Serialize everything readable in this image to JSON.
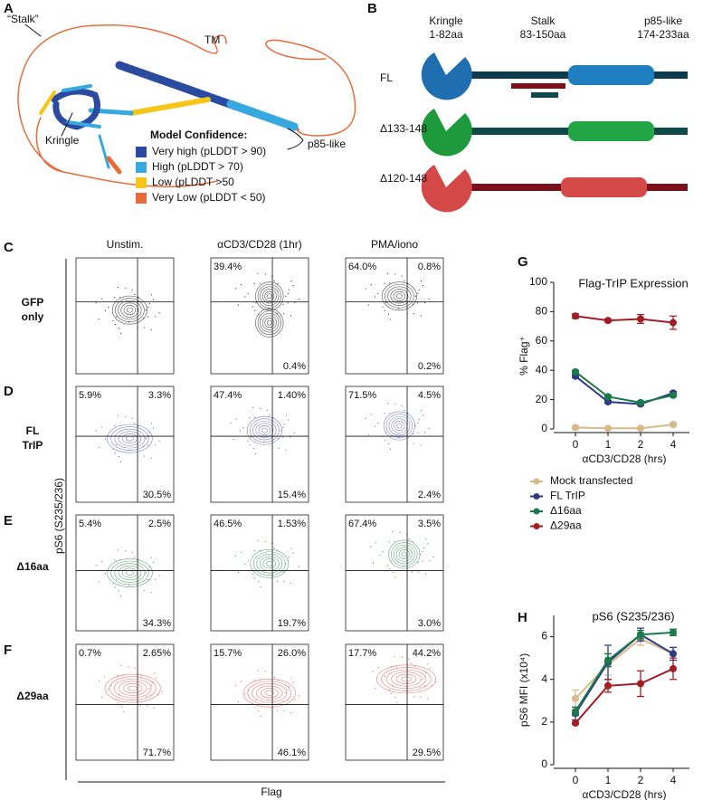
{
  "panel_labels": [
    "A",
    "B",
    "C",
    "D",
    "E",
    "F",
    "G",
    "H"
  ],
  "panel_a": {
    "labels": {
      "stalk": "“Stalk”",
      "tm": "TM",
      "kringle": "Kringle",
      "p85": "p85-like"
    },
    "legend_title": "Model Confidence:",
    "legend": [
      {
        "label": "Very high (pLDDT > 90)",
        "color": "#2a4ba0"
      },
      {
        "label": "High (pLDDT > 70)",
        "color": "#35a9e0"
      },
      {
        "label": "Low (pLDDT >50",
        "color": "#f5c518"
      },
      {
        "label": "Very Low (pLDDT < 50)",
        "color": "#e86c3a"
      }
    ]
  },
  "panel_b": {
    "domains": [
      {
        "name": "Kringle",
        "range": "1-82aa"
      },
      {
        "name": "Stalk",
        "range": "83-150aa"
      },
      {
        "name": "p85-like",
        "range": "174-233aa"
      }
    ],
    "constructs": [
      "FL",
      "Δ133-148",
      "Δ120-148"
    ]
  },
  "flow": {
    "columns": [
      "Unstim.",
      "αCD3/CD28 (1hr)",
      "PMA/iono"
    ],
    "y_label": "pS6 (S235/236)",
    "x_label": "Flag",
    "rows": [
      {
        "label": [
          "GFP",
          "only"
        ],
        "plots": [
          {},
          {
            "ul": "39.4%",
            "lr": "0.4%"
          },
          {
            "ul": "64.0%",
            "ur": "0.8%",
            "lr": "0.2%"
          }
        ]
      },
      {
        "label": [
          "FL",
          "TrIP"
        ],
        "plots": [
          {
            "ul": "5.9%",
            "ur": "3.3%",
            "lr": "30.5%"
          },
          {
            "ul": "47.4%",
            "ur": "1.40%",
            "lr": "15.4%"
          },
          {
            "ul": "71.5%",
            "ur": "4.5%",
            "lr": "2.4%"
          }
        ]
      },
      {
        "label": [
          "Δ16aa"
        ],
        "plots": [
          {
            "ul": "5.4%",
            "ur": "2.5%",
            "lr": "34.3%"
          },
          {
            "ul": "46.5%",
            "ur": "1.53%",
            "lr": "19.7%"
          },
          {
            "ul": "67.4%",
            "ur": "3.5%",
            "lr": "3.0%"
          }
        ]
      },
      {
        "label": [
          "Δ29aa"
        ],
        "plots": [
          {
            "ul": "0.7%",
            "ur": "2.65%",
            "lr": "71.7%"
          },
          {
            "ul": "15.7%",
            "ur": "26.0%",
            "lr": "46.1%"
          },
          {
            "ul": "17.7%",
            "ur": "44.2%",
            "lr": "29.5%"
          }
        ]
      }
    ]
  },
  "chart_data": [
    {
      "type": "line",
      "title": "Flag-TrIP Expression",
      "y_label": "% Flag⁺",
      "x_label": "αCD3/CD28 (hrs)",
      "categories": [
        "0",
        "1",
        "2",
        "4"
      ],
      "ylim": [
        0,
        100
      ],
      "yticks": [
        0,
        20,
        40,
        60,
        80,
        100
      ],
      "legend": "bottom",
      "series": [
        {
          "name": "Mock transfected",
          "color": "#d9b98c",
          "values": [
            1,
            0.5,
            0.5,
            3
          ],
          "errors": [
            1,
            0.5,
            0.5,
            1
          ]
        },
        {
          "name": "FL TrIP",
          "color": "#2e3a87",
          "values": [
            36,
            18.5,
            17,
            24.5
          ],
          "errors": [
            1,
            1,
            1,
            1
          ]
        },
        {
          "name": "Δ16aa",
          "color": "#1a7a4a",
          "values": [
            39,
            22,
            18,
            23
          ],
          "errors": [
            1,
            1,
            1,
            1
          ]
        },
        {
          "name": "Δ29aa",
          "color": "#a31d25",
          "values": [
            77,
            74,
            75,
            72.5
          ],
          "errors": [
            1.5,
            1,
            3,
            4.5
          ]
        }
      ]
    },
    {
      "type": "line",
      "title": "pS6 (S235/236)",
      "y_label": "pS6 MFI (x10⁴)",
      "x_label": "αCD3/CD28 (hrs)",
      "categories": [
        "0",
        "1",
        "2",
        "4"
      ],
      "ylim": [
        0,
        7
      ],
      "yticks": [
        0,
        2,
        4,
        6
      ],
      "series": [
        {
          "color": "#d9b98c",
          "values": [
            3.1,
            4.7,
            5.9,
            5.2
          ],
          "errors": [
            0.4,
            0.5,
            0.3,
            0.3
          ]
        },
        {
          "color": "#2e3a87",
          "values": [
            2.4,
            4.8,
            6.1,
            5.2
          ],
          "errors": [
            0.3,
            0.8,
            0.3,
            0.3
          ]
        },
        {
          "color": "#1a7a4a",
          "values": [
            2.5,
            4.9,
            6.1,
            6.2
          ],
          "errors": [
            0.2,
            0.3,
            0.2,
            0.15
          ]
        },
        {
          "color": "#a31d25",
          "values": [
            1.95,
            3.7,
            3.8,
            4.5
          ],
          "errors": [
            0.05,
            0.3,
            0.6,
            0.5
          ]
        }
      ]
    }
  ]
}
